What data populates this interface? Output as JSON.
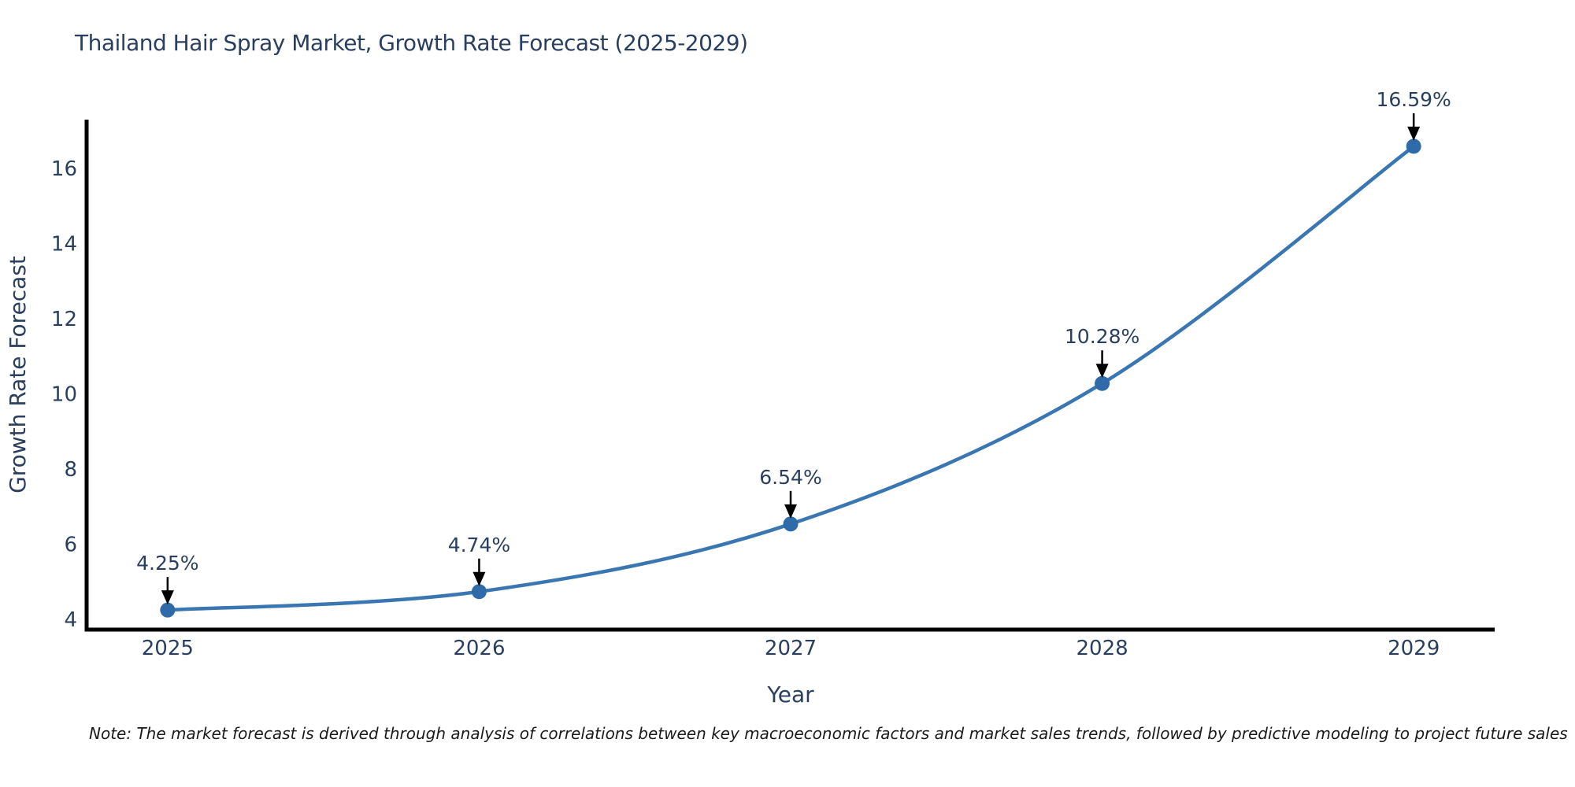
{
  "chart_data": {
    "type": "line",
    "title": "Thailand Hair Spray Market, Growth Rate Forecast (2025-2029)",
    "xlabel": "Year",
    "ylabel": "Growth Rate Forecast",
    "x": [
      2025,
      2026,
      2027,
      2028,
      2029
    ],
    "values": [
      4.25,
      4.74,
      6.54,
      10.28,
      16.59
    ],
    "point_labels": [
      "4.25%",
      "4.74%",
      "6.54%",
      "10.28%",
      "16.59%"
    ],
    "yticks": [
      4,
      6,
      8,
      10,
      12,
      14,
      16
    ],
    "xticks": [
      2025,
      2026,
      2027,
      2028,
      2029
    ],
    "xlim": [
      2024.74,
      2029.26
    ],
    "ylim": [
      3.73,
      17.3
    ],
    "grid": false,
    "legend_position": "none",
    "line_color": "#3a76b1",
    "marker_color": "#2e6ba8",
    "text_color": "#2a3f5f",
    "axis_color": "#000000",
    "annotation_arrow_color": "#000000"
  },
  "note": {
    "text": "Note: The market forecast is derived through analysis of correlations between key macroeconomic factors and market sales trends, followed by predictive modeling to project future sales"
  }
}
